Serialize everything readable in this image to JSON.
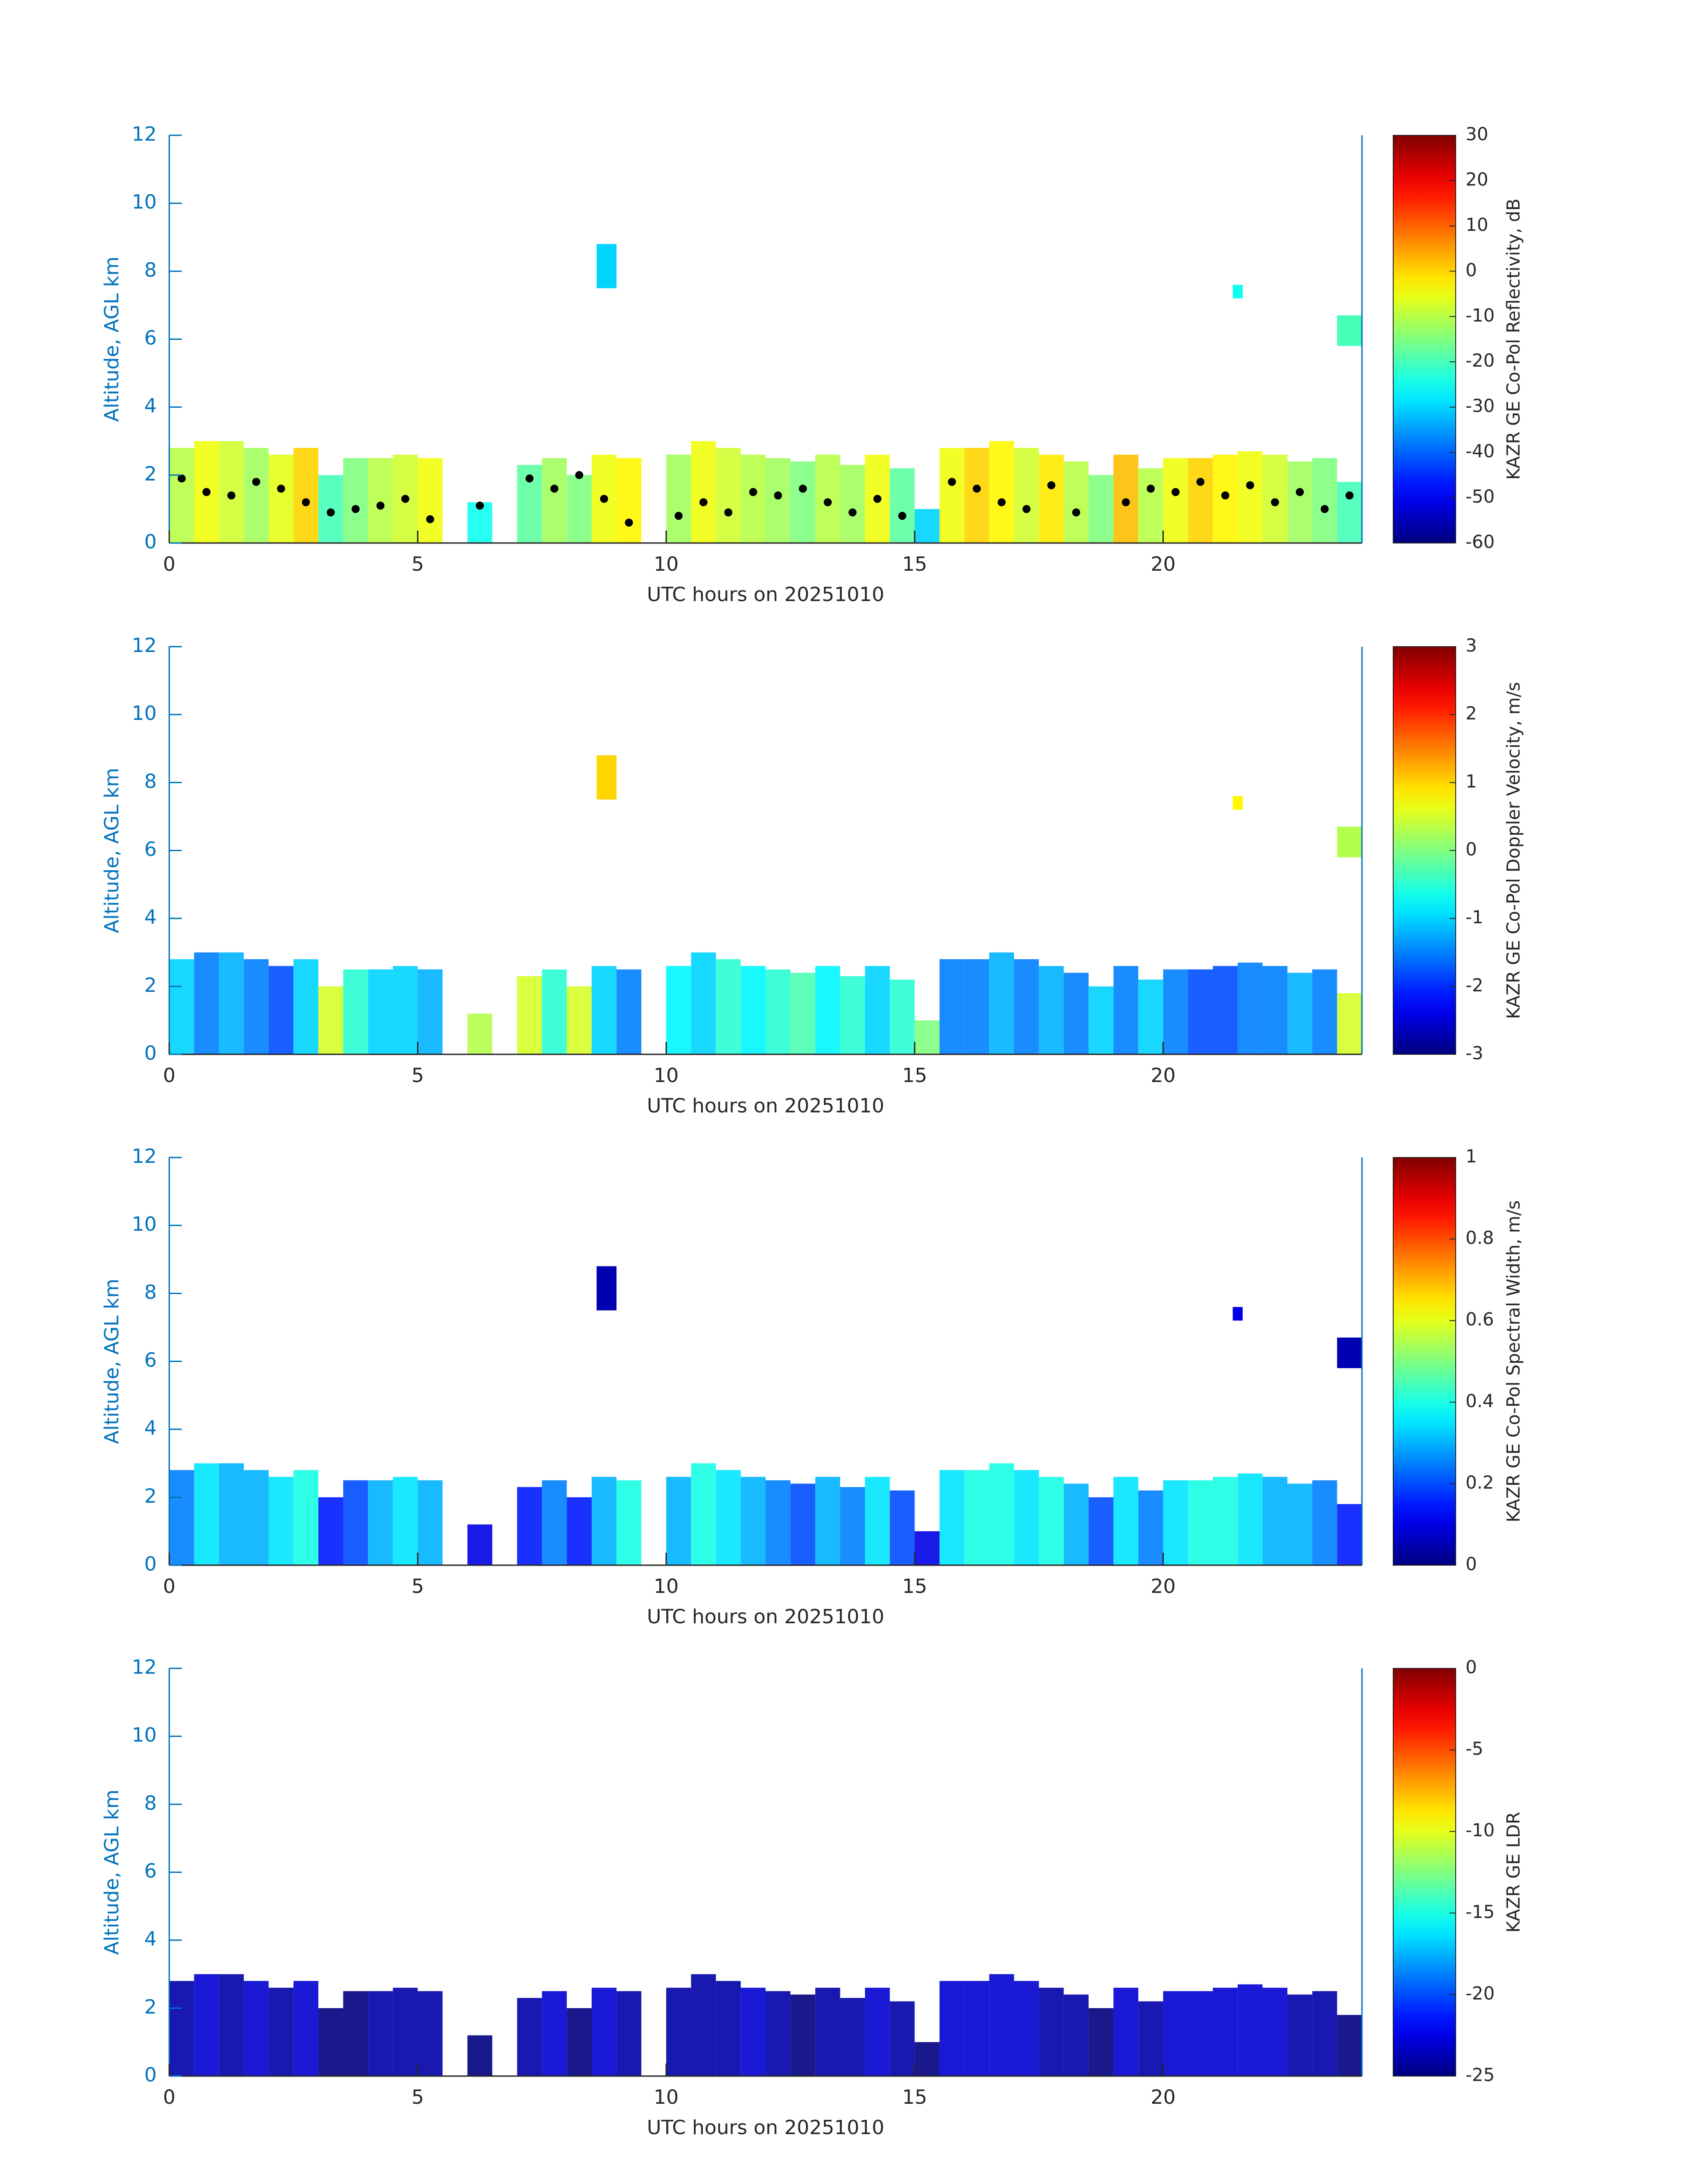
{
  "chart_data": [
    {
      "type": "heatmap",
      "x_label": "UTC hours on 20251010",
      "y_label": "Altitude, AGL km",
      "colorbar_label": "KAZR GE Co-Pol Reflectivity, dB",
      "colormap": "jet",
      "xlim": [
        0,
        24
      ],
      "ylim": [
        0,
        12
      ],
      "xticks": [
        0,
        5,
        10,
        15,
        20
      ],
      "yticks": [
        0,
        2,
        4,
        6,
        8,
        10,
        12
      ],
      "clim": [
        -60,
        30
      ],
      "cticks": [
        -60,
        -50,
        -40,
        -30,
        -20,
        -10,
        0,
        10,
        20,
        30
      ],
      "x": [
        0,
        0.5,
        1,
        1.5,
        2,
        2.5,
        3,
        3.5,
        4,
        4.5,
        5,
        5.5,
        6,
        6.5,
        7,
        7.5,
        8,
        8.5,
        9,
        9.5,
        10,
        10.5,
        11,
        11.5,
        12,
        12.5,
        13,
        13.5,
        14,
        14.5,
        15,
        15.5,
        16,
        16.5,
        17,
        17.5,
        18,
        18.5,
        19,
        19.5,
        20,
        20.5,
        21,
        21.5,
        22,
        22.5,
        23,
        23.5
      ],
      "cloud_top": [
        2.8,
        3.0,
        3.0,
        2.8,
        2.6,
        2.8,
        2.0,
        2.5,
        2.5,
        2.6,
        2.5,
        null,
        1.2,
        null,
        2.3,
        2.5,
        2.0,
        2.6,
        2.5,
        null,
        2.6,
        3.0,
        2.8,
        2.6,
        2.5,
        2.4,
        2.6,
        2.3,
        2.6,
        2.2,
        1.0,
        2.8,
        2.8,
        3.0,
        2.8,
        2.6,
        2.4,
        2.0,
        2.6,
        2.2,
        2.5,
        2.5,
        2.6,
        2.7,
        2.6,
        2.4,
        2.5,
        1.8
      ],
      "values": [
        -10,
        -5,
        -8,
        -12,
        -6,
        0,
        -20,
        -15,
        -10,
        -8,
        -5,
        null,
        -25,
        null,
        -18,
        -12,
        -15,
        -5,
        -3,
        null,
        -12,
        -5,
        -8,
        -10,
        -12,
        -15,
        -10,
        -12,
        -5,
        -18,
        -30,
        -5,
        0,
        -3,
        -8,
        -2,
        -10,
        -15,
        2,
        -10,
        -5,
        0,
        -3,
        -5,
        -8,
        -12,
        -15,
        -20
      ],
      "cloud_base": [
        1.9,
        1.5,
        1.4,
        1.8,
        1.6,
        1.2,
        0.9,
        1.0,
        1.1,
        1.3,
        0.7,
        null,
        1.1,
        null,
        1.9,
        1.6,
        2.0,
        1.3,
        0.6,
        null,
        0.8,
        1.2,
        0.9,
        1.5,
        1.4,
        1.6,
        1.2,
        0.9,
        1.3,
        0.8,
        null,
        1.8,
        1.6,
        1.2,
        1.0,
        1.7,
        0.9,
        null,
        1.2,
        1.6,
        1.5,
        1.8,
        1.4,
        1.7,
        1.2,
        1.5,
        1.0,
        1.4
      ],
      "elevated": [
        {
          "x": [
            8.6,
            9.0
          ],
          "altitude": [
            7.5,
            8.8
          ],
          "value": -30
        },
        {
          "x": [
            21.4,
            21.6
          ],
          "altitude": [
            7.2,
            7.6
          ],
          "value": -25
        },
        {
          "x": [
            23.5,
            24
          ],
          "altitude": [
            5.8,
            6.7
          ],
          "value": -20
        }
      ]
    },
    {
      "type": "heatmap",
      "x_label": "UTC hours on 20251010",
      "y_label": "Altitude, AGL km",
      "colorbar_label": "KAZR GE Co-Pol Doppler Velocity, m/s",
      "colormap": "jet",
      "xlim": [
        0,
        24
      ],
      "ylim": [
        0,
        12
      ],
      "xticks": [
        0,
        5,
        10,
        15,
        20
      ],
      "yticks": [
        0,
        2,
        4,
        6,
        8,
        10,
        12
      ],
      "clim": [
        -3,
        3
      ],
      "cticks": [
        -3,
        -2,
        -1,
        0,
        1,
        2,
        3
      ],
      "x": [
        0,
        0.5,
        1,
        1.5,
        2,
        2.5,
        3,
        3.5,
        4,
        4.5,
        5,
        5.5,
        6,
        6.5,
        7,
        7.5,
        8,
        8.5,
        9,
        9.5,
        10,
        10.5,
        11,
        11.5,
        12,
        12.5,
        13,
        13.5,
        14,
        14.5,
        15,
        15.5,
        16,
        16.5,
        17,
        17.5,
        18,
        18.5,
        19,
        19.5,
        20,
        20.5,
        21,
        21.5,
        22,
        22.5,
        23,
        23.5
      ],
      "cloud_top": [
        2.8,
        3.0,
        3.0,
        2.8,
        2.6,
        2.8,
        2.0,
        2.5,
        2.5,
        2.6,
        2.5,
        null,
        1.2,
        null,
        2.3,
        2.5,
        2.0,
        2.6,
        2.5,
        null,
        2.6,
        3.0,
        2.8,
        2.6,
        2.5,
        2.4,
        2.6,
        2.3,
        2.6,
        2.2,
        1.0,
        2.8,
        2.8,
        3.0,
        2.8,
        2.6,
        2.4,
        2.0,
        2.6,
        2.2,
        2.5,
        2.5,
        2.6,
        2.7,
        2.6,
        2.4,
        2.5,
        1.8
      ],
      "values": [
        -1,
        -1.5,
        -1.2,
        -1.5,
        -1.8,
        -1,
        0.5,
        -0.5,
        -1,
        -1,
        -1.2,
        null,
        0.3,
        null,
        0.5,
        -0.5,
        0.5,
        -1,
        -1.5,
        null,
        -0.8,
        -1,
        -0.5,
        -0.8,
        -0.5,
        -0.3,
        -0.8,
        -0.5,
        -1,
        -0.5,
        0,
        -1.5,
        -1.5,
        -1.2,
        -1.5,
        -1.2,
        -1.5,
        -1,
        -1.5,
        -1,
        -1.5,
        -1.8,
        -1.8,
        -1.5,
        -1.5,
        -1.2,
        -1.5,
        0.5
      ],
      "elevated": [
        {
          "x": [
            8.6,
            9.0
          ],
          "altitude": [
            7.5,
            8.8
          ],
          "value": 1
        },
        {
          "x": [
            21.4,
            21.6
          ],
          "altitude": [
            7.2,
            7.6
          ],
          "value": 0.8
        },
        {
          "x": [
            23.5,
            24
          ],
          "altitude": [
            5.8,
            6.7
          ],
          "value": 0.3
        }
      ]
    },
    {
      "type": "heatmap",
      "x_label": "UTC hours on 20251010",
      "y_label": "Altitude, AGL km",
      "colorbar_label": "KAZR GE Co-Pol Spectral Width, m/s",
      "colormap": "jet",
      "xlim": [
        0,
        24
      ],
      "ylim": [
        0,
        12
      ],
      "xticks": [
        0,
        5,
        10,
        15,
        20
      ],
      "yticks": [
        0,
        2,
        4,
        6,
        8,
        10,
        12
      ],
      "clim": [
        0,
        1
      ],
      "cticks": [
        0,
        0.2,
        0.4,
        0.6,
        0.8,
        1
      ],
      "x": [
        0,
        0.5,
        1,
        1.5,
        2,
        2.5,
        3,
        3.5,
        4,
        4.5,
        5,
        5.5,
        6,
        6.5,
        7,
        7.5,
        8,
        8.5,
        9,
        9.5,
        10,
        10.5,
        11,
        11.5,
        12,
        12.5,
        13,
        13.5,
        14,
        14.5,
        15,
        15.5,
        16,
        16.5,
        17,
        17.5,
        18,
        18.5,
        19,
        19.5,
        20,
        20.5,
        21,
        21.5,
        22,
        22.5,
        23,
        23.5
      ],
      "cloud_top": [
        2.8,
        3.0,
        3.0,
        2.8,
        2.6,
        2.8,
        2.0,
        2.5,
        2.5,
        2.6,
        2.5,
        null,
        1.2,
        null,
        2.3,
        2.5,
        2.0,
        2.6,
        2.5,
        null,
        2.6,
        3.0,
        2.8,
        2.6,
        2.5,
        2.4,
        2.6,
        2.3,
        2.6,
        2.2,
        1.0,
        2.8,
        2.8,
        3.0,
        2.8,
        2.6,
        2.4,
        2.0,
        2.6,
        2.2,
        2.5,
        2.5,
        2.6,
        2.7,
        2.6,
        2.4,
        2.5,
        1.8
      ],
      "values": [
        0.25,
        0.35,
        0.3,
        0.3,
        0.35,
        0.4,
        0.15,
        0.2,
        0.3,
        0.35,
        0.3,
        null,
        0.1,
        null,
        0.15,
        0.25,
        0.15,
        0.3,
        0.4,
        null,
        0.3,
        0.4,
        0.35,
        0.3,
        0.25,
        0.2,
        0.3,
        0.25,
        0.35,
        0.2,
        0.1,
        0.35,
        0.4,
        0.4,
        0.35,
        0.4,
        0.3,
        0.2,
        0.35,
        0.25,
        0.35,
        0.4,
        0.4,
        0.35,
        0.3,
        0.3,
        0.25,
        0.15
      ],
      "elevated": [
        {
          "x": [
            8.6,
            9.0
          ],
          "altitude": [
            7.5,
            8.8
          ],
          "value": 0.05
        },
        {
          "x": [
            21.4,
            21.6
          ],
          "altitude": [
            7.2,
            7.6
          ],
          "value": 0.1
        },
        {
          "x": [
            23.5,
            24
          ],
          "altitude": [
            5.8,
            6.7
          ],
          "value": 0.05
        }
      ]
    },
    {
      "type": "heatmap",
      "x_label": "UTC hours on 20251010",
      "y_label": "Altitude, AGL km",
      "colorbar_label": "KAZR GE LDR",
      "colormap": "jet",
      "xlim": [
        0,
        24
      ],
      "ylim": [
        0,
        12
      ],
      "xticks": [
        0,
        5,
        10,
        15,
        20
      ],
      "yticks": [
        0,
        2,
        4,
        6,
        8,
        10,
        12
      ],
      "clim": [
        -25,
        0
      ],
      "cticks": [
        -25,
        -20,
        -15,
        -10,
        -5,
        0
      ],
      "x": [
        0,
        0.5,
        1,
        1.5,
        2,
        2.5,
        3,
        3.5,
        4,
        4.5,
        5,
        5.5,
        6,
        6.5,
        7,
        7.5,
        8,
        8.5,
        9,
        9.5,
        10,
        10.5,
        11,
        11.5,
        12,
        12.5,
        13,
        13.5,
        14,
        14.5,
        15,
        15.5,
        16,
        16.5,
        17,
        17.5,
        18,
        18.5,
        19,
        19.5,
        20,
        20.5,
        21,
        21.5,
        22,
        22.5,
        23,
        23.5
      ],
      "cloud_top": [
        2.8,
        3.0,
        3.0,
        2.8,
        2.6,
        2.8,
        2.0,
        2.5,
        2.5,
        2.6,
        2.5,
        null,
        1.2,
        null,
        2.3,
        2.5,
        2.0,
        2.6,
        2.5,
        null,
        2.6,
        3.0,
        2.8,
        2.6,
        2.5,
        2.4,
        2.6,
        2.3,
        2.6,
        2.2,
        1.0,
        2.8,
        2.8,
        3.0,
        2.8,
        2.6,
        2.4,
        2.0,
        2.6,
        2.2,
        2.5,
        2.5,
        2.6,
        2.7,
        2.6,
        2.4,
        2.5,
        1.8
      ],
      "values": [
        -24,
        -23,
        -24,
        -23,
        -24,
        -23,
        -25,
        -25,
        -24,
        -24,
        -24,
        null,
        -25,
        null,
        -24,
        -23,
        -25,
        -23,
        -24,
        null,
        -24,
        -24,
        -24,
        -23,
        -24,
        -25,
        -24,
        -24,
        -23,
        -24,
        -25,
        -23,
        -23,
        -23,
        -23,
        -24,
        -24,
        -25,
        -23,
        -24,
        -23,
        -23,
        -23,
        -23,
        -23,
        -24,
        -24,
        -25
      ]
    }
  ]
}
